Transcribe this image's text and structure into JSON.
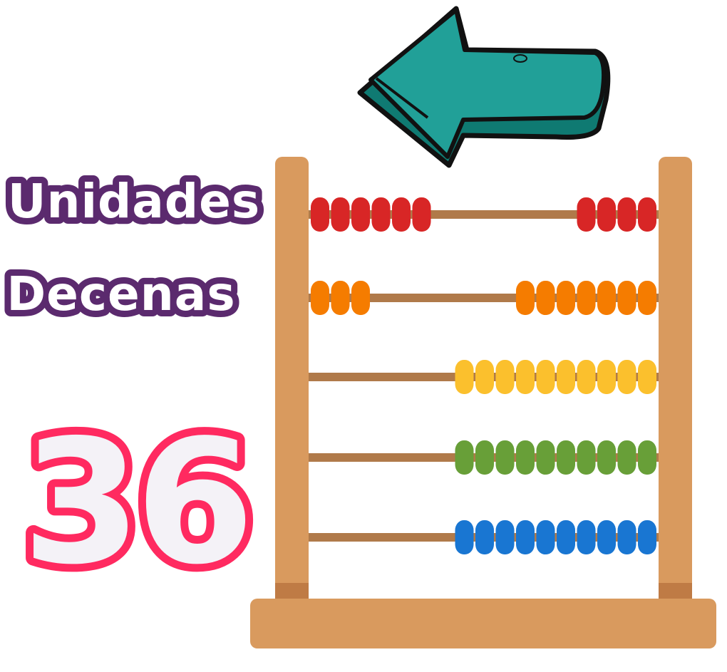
{
  "labels": {
    "units": "Unidades",
    "tens": "Decenas"
  },
  "number": "36",
  "colors": {
    "label_fill": "#ffffff",
    "label_stroke": "#5b2a6e",
    "number_fill": "#f4f2f7",
    "number_stroke": "#ff2a60",
    "arrow_fill": "#21a098",
    "arrow_shade": "#0f7a72",
    "frame": "#d99a5e",
    "frame_dark": "#bf7b45",
    "rod": "#b07a4a"
  },
  "arrow": {
    "direction": "left",
    "icon": "arrow-left-icon"
  },
  "abacus": {
    "rows": [
      {
        "color": "#d82626",
        "left_beads": 6,
        "right_beads": 4
      },
      {
        "color": "#f57c00",
        "left_beads": 3,
        "right_beads": 7
      },
      {
        "color": "#fbc02d",
        "left_beads": 0,
        "right_beads": 10
      },
      {
        "color": "#689f38",
        "left_beads": 0,
        "right_beads": 10
      },
      {
        "color": "#1976d2",
        "left_beads": 0,
        "right_beads": 10
      }
    ]
  }
}
